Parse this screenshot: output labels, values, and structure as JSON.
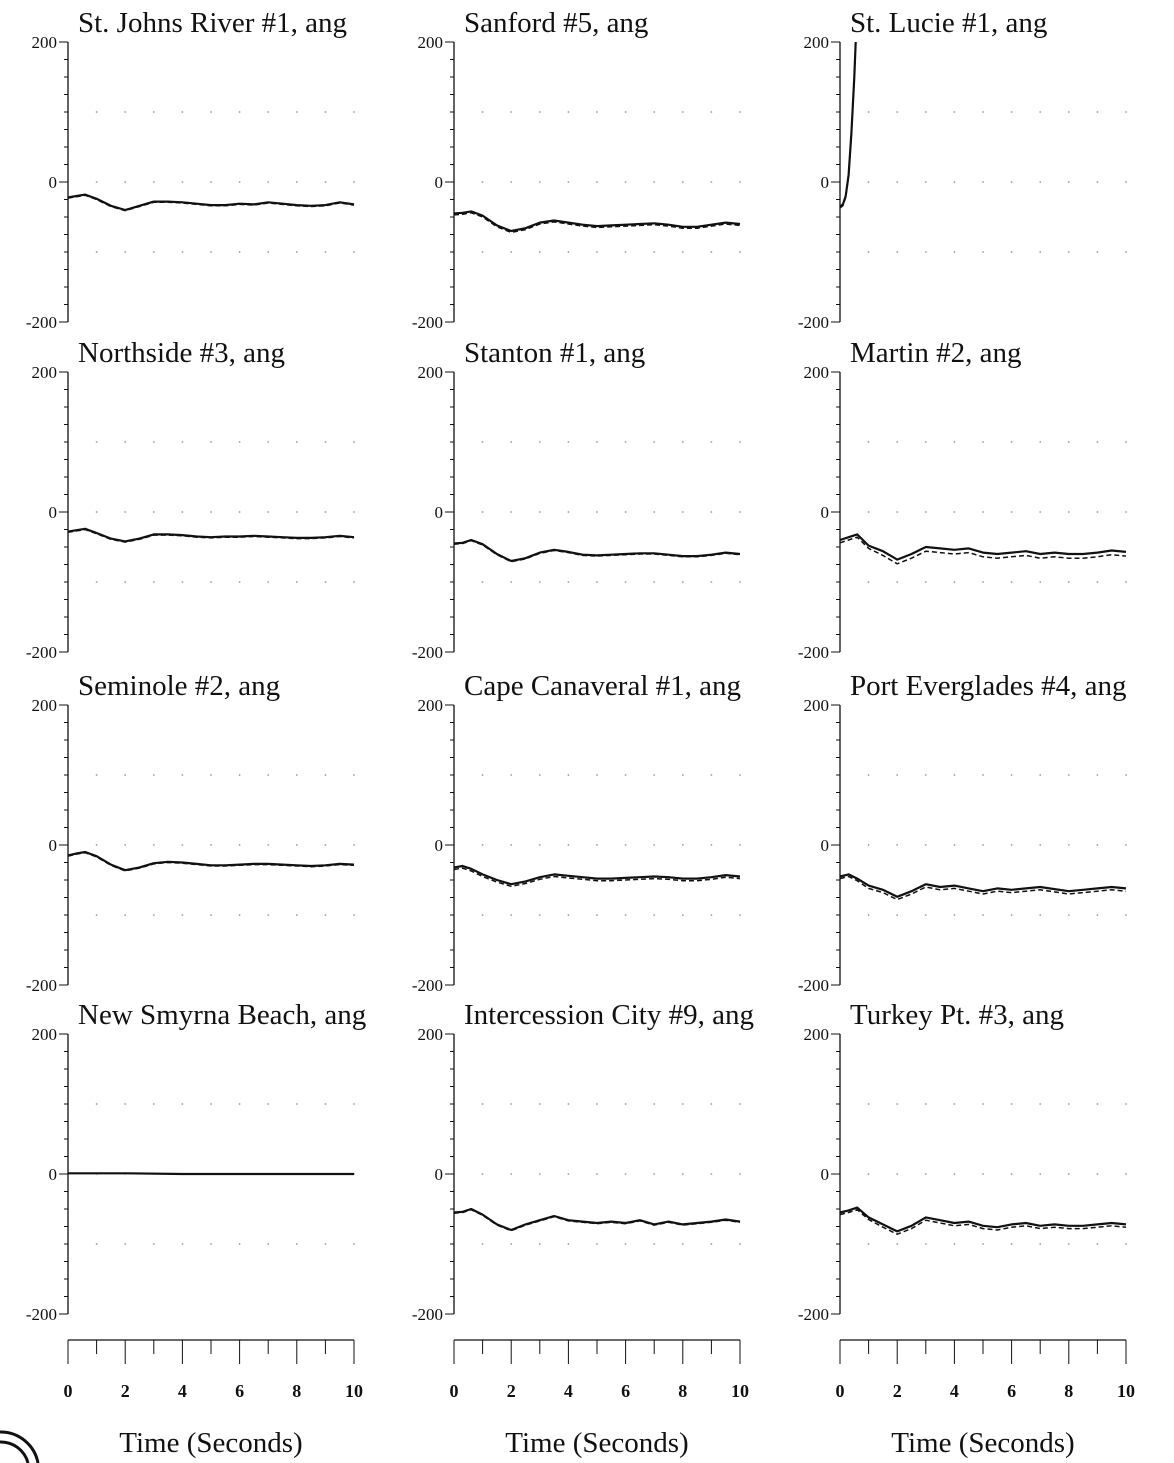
{
  "figure": {
    "x_axis_label": "Time (Seconds)",
    "x_ticks": [
      0,
      2,
      4,
      6,
      8,
      10
    ],
    "y_ticks": [
      200,
      0,
      -200
    ],
    "line_color": "#111111"
  },
  "chart_data": [
    {
      "type": "line",
      "title": "St. Johns River #1, ang",
      "xlim": [
        0,
        10
      ],
      "ylim": [
        -200,
        200
      ],
      "x": [
        0,
        0.3,
        0.6,
        1,
        1.5,
        2,
        2.5,
        3,
        3.5,
        4,
        4.5,
        5,
        5.5,
        6,
        6.5,
        7,
        7.5,
        8,
        8.5,
        9,
        9.5,
        10
      ],
      "series": [
        {
          "style": "solid",
          "values": [
            -22,
            -20,
            -18,
            -24,
            -34,
            -40,
            -34,
            -28,
            -28,
            -29,
            -31,
            -33,
            -33,
            -31,
            -32,
            -29,
            -31,
            -33,
            -34,
            -33,
            -29,
            -32
          ]
        },
        {
          "style": "dashed",
          "values": [
            -23,
            -21,
            -19,
            -25,
            -35,
            -41,
            -35,
            -29,
            -29,
            -30,
            -32,
            -34,
            -34,
            -32,
            -33,
            -30,
            -32,
            -34,
            -35,
            -34,
            -30,
            -33
          ]
        }
      ]
    },
    {
      "type": "line",
      "title": "Sanford #5, ang",
      "xlim": [
        0,
        10
      ],
      "ylim": [
        -200,
        200
      ],
      "x": [
        0,
        0.3,
        0.6,
        1,
        1.5,
        2,
        2.5,
        3,
        3.5,
        4,
        4.5,
        5,
        5.5,
        6,
        6.5,
        7,
        7.5,
        8,
        8.5,
        9,
        9.5,
        10
      ],
      "series": [
        {
          "style": "solid",
          "values": [
            -45,
            -44,
            -42,
            -48,
            -62,
            -70,
            -66,
            -58,
            -55,
            -58,
            -61,
            -63,
            -62,
            -61,
            -60,
            -59,
            -61,
            -64,
            -64,
            -61,
            -58,
            -60
          ]
        },
        {
          "style": "dashed",
          "values": [
            -47,
            -46,
            -44,
            -50,
            -64,
            -72,
            -68,
            -60,
            -57,
            -60,
            -63,
            -65,
            -64,
            -63,
            -62,
            -61,
            -63,
            -66,
            -66,
            -63,
            -60,
            -62
          ]
        }
      ]
    },
    {
      "type": "line",
      "title": "St. Lucie #1, ang",
      "xlim": [
        0,
        10
      ],
      "ylim": [
        -200,
        200
      ],
      "x": [
        0,
        0.1,
        0.2,
        0.3,
        0.4,
        0.5,
        0.55
      ],
      "series": [
        {
          "style": "solid",
          "values": [
            -35,
            -32,
            -20,
            10,
            70,
            150,
            200
          ]
        },
        {
          "style": "dashed",
          "values": [
            -37,
            -34,
            -22,
            8,
            68,
            148,
            200
          ]
        }
      ]
    },
    {
      "type": "line",
      "title": "Northside #3, ang",
      "xlim": [
        0,
        10
      ],
      "ylim": [
        -200,
        200
      ],
      "x": [
        0,
        0.3,
        0.6,
        1,
        1.5,
        2,
        2.5,
        3,
        3.5,
        4,
        4.5,
        5,
        5.5,
        6,
        6.5,
        7,
        7.5,
        8,
        8.5,
        9,
        9.5,
        10
      ],
      "series": [
        {
          "style": "solid",
          "values": [
            -28,
            -26,
            -24,
            -30,
            -38,
            -42,
            -38,
            -32,
            -32,
            -33,
            -35,
            -36,
            -35,
            -35,
            -34,
            -35,
            -36,
            -37,
            -37,
            -36,
            -34,
            -36
          ]
        },
        {
          "style": "dashed",
          "values": [
            -29,
            -27,
            -25,
            -31,
            -39,
            -43,
            -39,
            -33,
            -33,
            -34,
            -36,
            -37,
            -36,
            -36,
            -35,
            -36,
            -37,
            -38,
            -38,
            -37,
            -35,
            -37
          ]
        }
      ]
    },
    {
      "type": "line",
      "title": "Stanton #1, ang",
      "xlim": [
        0,
        10
      ],
      "ylim": [
        -200,
        200
      ],
      "x": [
        0,
        0.3,
        0.6,
        1,
        1.5,
        2,
        2.5,
        3,
        3.5,
        4,
        4.5,
        5,
        5.5,
        6,
        6.5,
        7,
        7.5,
        8,
        8.5,
        9,
        9.5,
        10
      ],
      "series": [
        {
          "style": "solid",
          "values": [
            -45,
            -44,
            -40,
            -46,
            -60,
            -70,
            -66,
            -58,
            -54,
            -57,
            -61,
            -62,
            -61,
            -60,
            -59,
            -59,
            -61,
            -63,
            -63,
            -61,
            -58,
            -60
          ]
        },
        {
          "style": "dashed",
          "values": [
            -46,
            -45,
            -41,
            -47,
            -61,
            -71,
            -67,
            -59,
            -55,
            -58,
            -62,
            -63,
            -62,
            -61,
            -60,
            -60,
            -62,
            -64,
            -64,
            -62,
            -59,
            -61
          ]
        }
      ]
    },
    {
      "type": "line",
      "title": "Martin #2, ang",
      "xlim": [
        0,
        10
      ],
      "ylim": [
        -200,
        200
      ],
      "x": [
        0,
        0.3,
        0.6,
        1,
        1.5,
        2,
        2.5,
        3,
        3.5,
        4,
        4.5,
        5,
        5.5,
        6,
        6.5,
        7,
        7.5,
        8,
        8.5,
        9,
        9.5,
        10
      ],
      "series": [
        {
          "style": "solid",
          "values": [
            -40,
            -36,
            -32,
            -48,
            -56,
            -68,
            -60,
            -50,
            -52,
            -54,
            -52,
            -58,
            -60,
            -58,
            -56,
            -60,
            -58,
            -60,
            -60,
            -58,
            -55,
            -57
          ]
        },
        {
          "style": "dashed",
          "values": [
            -44,
            -40,
            -36,
            -52,
            -62,
            -74,
            -66,
            -56,
            -58,
            -60,
            -58,
            -64,
            -66,
            -64,
            -62,
            -66,
            -64,
            -66,
            -66,
            -64,
            -61,
            -63
          ]
        }
      ]
    },
    {
      "type": "line",
      "title": "Seminole #2, ang",
      "xlim": [
        0,
        10
      ],
      "ylim": [
        -200,
        200
      ],
      "x": [
        0,
        0.3,
        0.6,
        1,
        1.5,
        2,
        2.5,
        3,
        3.5,
        4,
        4.5,
        5,
        5.5,
        6,
        6.5,
        7,
        7.5,
        8,
        8.5,
        9,
        9.5,
        10
      ],
      "series": [
        {
          "style": "solid",
          "values": [
            -15,
            -12,
            -10,
            -16,
            -28,
            -36,
            -32,
            -26,
            -24,
            -25,
            -27,
            -29,
            -29,
            -28,
            -27,
            -27,
            -28,
            -29,
            -30,
            -29,
            -27,
            -28
          ]
        },
        {
          "style": "dashed",
          "values": [
            -16,
            -13,
            -11,
            -17,
            -29,
            -37,
            -33,
            -27,
            -25,
            -26,
            -28,
            -30,
            -30,
            -29,
            -28,
            -28,
            -29,
            -30,
            -31,
            -30,
            -28,
            -29
          ]
        }
      ]
    },
    {
      "type": "line",
      "title": "Cape Canaveral #1, ang",
      "xlim": [
        0,
        10
      ],
      "ylim": [
        -200,
        200
      ],
      "x": [
        0,
        0.3,
        0.6,
        1,
        1.5,
        2,
        2.5,
        3,
        3.5,
        4,
        4.5,
        5,
        5.5,
        6,
        6.5,
        7,
        7.5,
        8,
        8.5,
        9,
        9.5,
        10
      ],
      "series": [
        {
          "style": "solid",
          "values": [
            -32,
            -30,
            -34,
            -42,
            -50,
            -56,
            -52,
            -46,
            -42,
            -44,
            -46,
            -48,
            -48,
            -47,
            -46,
            -45,
            -46,
            -48,
            -48,
            -46,
            -43,
            -45
          ]
        },
        {
          "style": "dashed",
          "values": [
            -35,
            -33,
            -37,
            -45,
            -53,
            -59,
            -55,
            -49,
            -45,
            -47,
            -49,
            -51,
            -51,
            -50,
            -49,
            -48,
            -49,
            -51,
            -51,
            -49,
            -46,
            -48
          ]
        }
      ]
    },
    {
      "type": "line",
      "title": "Port Everglades #4, ang",
      "xlim": [
        0,
        10
      ],
      "ylim": [
        -200,
        200
      ],
      "x": [
        0,
        0.3,
        0.6,
        1,
        1.5,
        2,
        2.5,
        3,
        3.5,
        4,
        4.5,
        5,
        5.5,
        6,
        6.5,
        7,
        7.5,
        8,
        8.5,
        9,
        9.5,
        10
      ],
      "series": [
        {
          "style": "solid",
          "values": [
            -45,
            -42,
            -48,
            -58,
            -64,
            -74,
            -66,
            -56,
            -60,
            -58,
            -62,
            -66,
            -62,
            -64,
            -62,
            -60,
            -63,
            -66,
            -64,
            -62,
            -60,
            -62
          ]
        },
        {
          "style": "dashed",
          "values": [
            -48,
            -45,
            -51,
            -62,
            -68,
            -78,
            -70,
            -60,
            -64,
            -62,
            -66,
            -70,
            -66,
            -68,
            -66,
            -64,
            -67,
            -70,
            -68,
            -66,
            -64,
            -66
          ]
        }
      ]
    },
    {
      "type": "line",
      "title": "New Smyrna Beach, ang",
      "xlim": [
        0,
        10
      ],
      "ylim": [
        -200,
        200
      ],
      "x": [
        0,
        2,
        4,
        6,
        8,
        10
      ],
      "series": [
        {
          "style": "solid",
          "values": [
            1,
            1,
            0,
            0,
            0,
            0
          ]
        }
      ]
    },
    {
      "type": "line",
      "title": "Intercession City #9, ang",
      "xlim": [
        0,
        10
      ],
      "ylim": [
        -200,
        200
      ],
      "x": [
        0,
        0.3,
        0.6,
        1,
        1.5,
        2,
        2.5,
        3,
        3.5,
        4,
        4.5,
        5,
        5.5,
        6,
        6.5,
        7,
        7.5,
        8,
        8.5,
        9,
        9.5,
        10
      ],
      "series": [
        {
          "style": "solid",
          "values": [
            -55,
            -54,
            -50,
            -58,
            -72,
            -80,
            -72,
            -66,
            -60,
            -66,
            -68,
            -70,
            -68,
            -70,
            -66,
            -72,
            -68,
            -72,
            -70,
            -68,
            -65,
            -68
          ]
        },
        {
          "style": "dashed",
          "values": [
            -56,
            -55,
            -51,
            -59,
            -73,
            -81,
            -73,
            -67,
            -61,
            -67,
            -69,
            -71,
            -69,
            -71,
            -67,
            -73,
            -69,
            -73,
            -71,
            -69,
            -66,
            -69
          ]
        }
      ]
    },
    {
      "type": "line",
      "title": "Turkey Pt. #3, ang",
      "xlim": [
        0,
        10
      ],
      "ylim": [
        -200,
        200
      ],
      "x": [
        0,
        0.3,
        0.6,
        1,
        1.5,
        2,
        2.5,
        3,
        3.5,
        4,
        4.5,
        5,
        5.5,
        6,
        6.5,
        7,
        7.5,
        8,
        8.5,
        9,
        9.5,
        10
      ],
      "series": [
        {
          "style": "solid",
          "values": [
            -55,
            -52,
            -48,
            -62,
            -72,
            -82,
            -74,
            -62,
            -66,
            -70,
            -68,
            -74,
            -76,
            -72,
            -70,
            -74,
            -72,
            -74,
            -74,
            -72,
            -70,
            -72
          ]
        },
        {
          "style": "dashed",
          "values": [
            -58,
            -55,
            -51,
            -65,
            -76,
            -86,
            -78,
            -66,
            -70,
            -74,
            -72,
            -78,
            -80,
            -76,
            -74,
            -78,
            -76,
            -78,
            -78,
            -76,
            -74,
            -76
          ]
        }
      ]
    }
  ]
}
